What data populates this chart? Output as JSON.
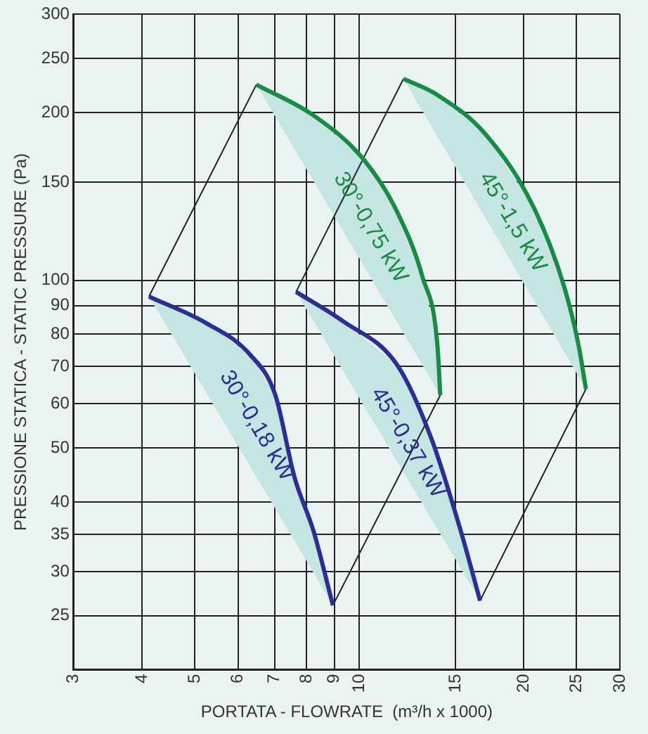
{
  "chart_data": {
    "type": "line",
    "xlabel": "PORTATA - FLOWRATE  (m³/h x 1000)",
    "ylabel": "PRESSIONE STATICA - STATIC PRESSURE (Pa)",
    "log": "xy",
    "grid": true,
    "legend": false,
    "marker": "none",
    "line_style": "solid",
    "xlim": [
      3,
      30
    ],
    "xticks": [
      3,
      4,
      5,
      6,
      7,
      8,
      9,
      10,
      15,
      20,
      25,
      30
    ],
    "ylim": [
      20,
      300
    ],
    "yticks": [
      25,
      30,
      35,
      40,
      50,
      60,
      70,
      80,
      90,
      100,
      150,
      200,
      250,
      300
    ],
    "series": [
      {
        "name": "30°-0,18 kW",
        "color": "#2b2f8f",
        "x": [
          4.12,
          5.24,
          6.32,
          7.02,
          7.61,
          8.25,
          8.95
        ],
        "values": [
          93.5,
          83.8,
          73.4,
          62.2,
          44.3,
          35.4,
          26.1
        ]
      },
      {
        "name": "45°-0,37 kW",
        "color": "#2b2f8f",
        "x": [
          7.66,
          9.34,
          11.75,
          13.56,
          15.35,
          16.64
        ],
        "values": [
          95.3,
          84.4,
          70.3,
          51.9,
          35.4,
          26.6
        ]
      },
      {
        "name": "30°-0,75 kW",
        "color": "#1a8a45",
        "x": [
          6.48,
          8.25,
          10.19,
          11.75,
          13.06,
          13.9,
          14.07
        ],
        "values": [
          224.4,
          197.5,
          164.6,
          132.2,
          101.2,
          76.5,
          62.2
        ]
      },
      {
        "name": "45°-1,5 kW",
        "color": "#1a8a45",
        "x": [
          12.05,
          13.9,
          17.05,
          20.9,
          23.7,
          25.2,
          26.0
        ],
        "values": [
          229.9,
          215,
          182.5,
          134.6,
          97.6,
          76.5,
          63.8
        ]
      },
      {
        "color": "#222222",
        "x": [
          4.12,
          6.48
        ],
        "values": [
          93.5,
          224.4
        ]
      },
      {
        "color": "#222222",
        "x": [
          7.66,
          12.05
        ],
        "values": [
          95.3,
          229.9
        ]
      },
      {
        "color": "#222222",
        "x": [
          8.95,
          14.07
        ],
        "values": [
          26.1,
          62.2
        ]
      },
      {
        "color": "#222222",
        "x": [
          16.64,
          26.0
        ],
        "values": [
          26.6,
          63.8
        ]
      }
    ]
  }
}
